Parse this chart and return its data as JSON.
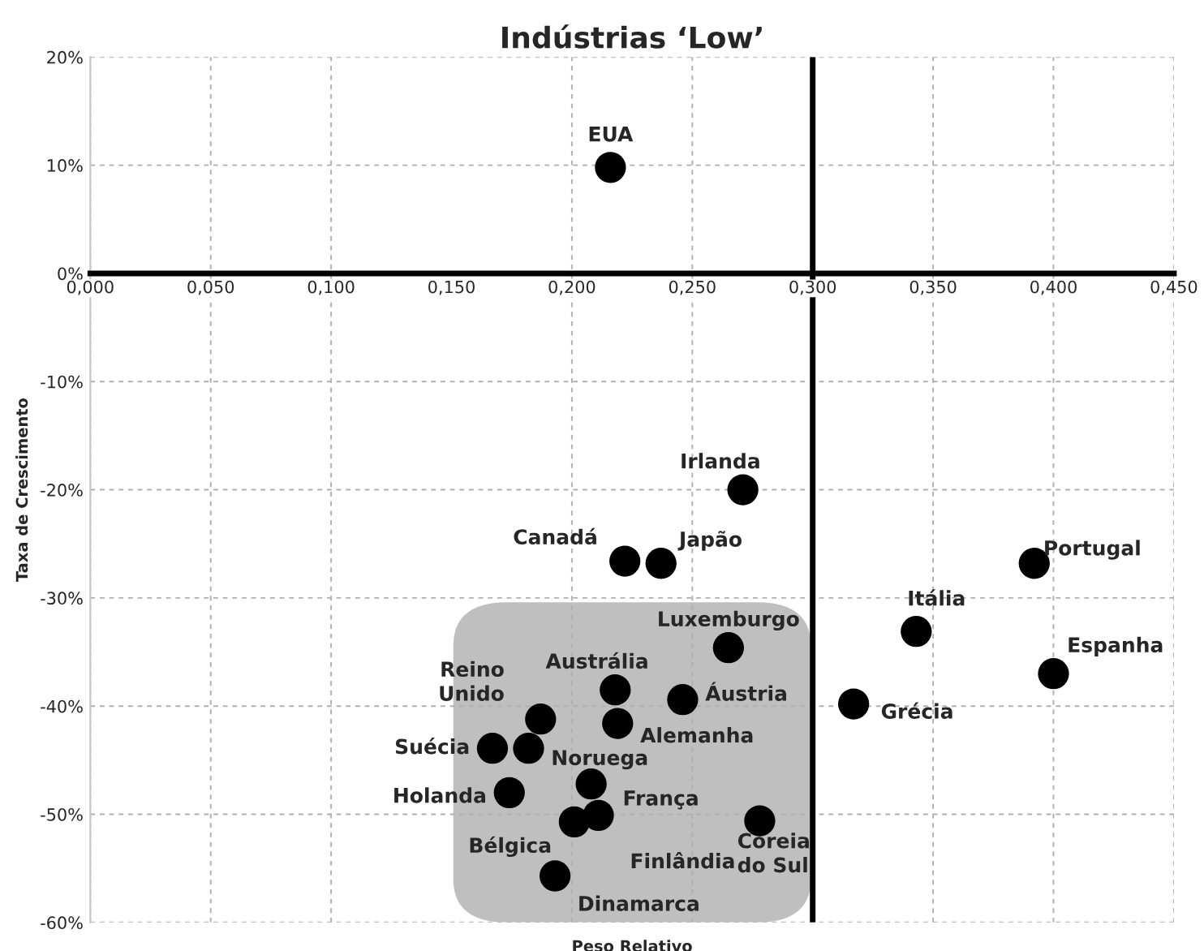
{
  "chart_data": {
    "type": "scatter",
    "title": "Indústrias ‘Low’",
    "xlabel": "Peso Relativo",
    "ylabel": "Taxa de Crescimento",
    "x": [
      0.216,
      0.271,
      0.222,
      0.237,
      0.265,
      0.218,
      0.246,
      0.187,
      0.219,
      0.167,
      0.182,
      0.174,
      0.208,
      0.211,
      0.201,
      0.193,
      0.278,
      0.317,
      0.343,
      0.392,
      0.4
    ],
    "series": [
      {
        "color": "#000000",
        "values": [
          9.8,
          -20.0,
          -26.6,
          -26.8,
          -34.6,
          -38.5,
          -39.4,
          -41.2,
          -41.6,
          -43.9,
          -43.9,
          -48.0,
          -47.2,
          -50.1,
          -50.7,
          -55.7,
          -50.6,
          -39.8,
          -33.1,
          -26.8,
          -37.0
        ]
      }
    ],
    "annotations": [
      {
        "text": "EUA",
        "x": 0.216,
        "y": 9.8
      },
      {
        "text": "Irlanda",
        "x": 0.271,
        "y": -20.0
      },
      {
        "text": "Canadá",
        "x": 0.222,
        "y": -26.6
      },
      {
        "text": "Japão",
        "x": 0.237,
        "y": -26.8
      },
      {
        "text": "Luxemburgo",
        "x": 0.265,
        "y": -34.6
      },
      {
        "text": "Austrália",
        "x": 0.218,
        "y": -38.5
      },
      {
        "text": "Áustria",
        "x": 0.246,
        "y": -39.4
      },
      {
        "text": "Reino\nUnido",
        "x": 0.187,
        "y": -41.2
      },
      {
        "text": "Alemanha",
        "x": 0.219,
        "y": -41.6
      },
      {
        "text": "Suécia",
        "x": 0.167,
        "y": -43.9
      },
      {
        "text": "Noruega",
        "x": 0.182,
        "y": -43.9
      },
      {
        "text": "Holanda",
        "x": 0.174,
        "y": -48.0
      },
      {
        "text": "França",
        "x": 0.208,
        "y": -47.2
      },
      {
        "text": "Finlândia",
        "x": 0.211,
        "y": -50.1
      },
      {
        "text": "Bélgica",
        "x": 0.201,
        "y": -50.7
      },
      {
        "text": "Dinamarca",
        "x": 0.193,
        "y": -55.7
      },
      {
        "text": "Coreia\ndo Sul",
        "x": 0.278,
        "y": -50.6
      },
      {
        "text": "Grécia",
        "x": 0.317,
        "y": -39.8
      },
      {
        "text": "Itália",
        "x": 0.343,
        "y": -33.1
      },
      {
        "text": "Portugal",
        "x": 0.392,
        "y": -26.8
      },
      {
        "text": "Espanha",
        "x": 0.4,
        "y": -37.0
      }
    ],
    "xlim": [
      0,
      0.45
    ],
    "xticks": [
      {
        "value": 0,
        "label": "0,000"
      },
      {
        "value": 0.05,
        "label": "0,050"
      },
      {
        "value": 0.1,
        "label": "0,100"
      },
      {
        "value": 0.15,
        "label": "0,150"
      },
      {
        "value": 0.2,
        "label": "0,200"
      },
      {
        "value": 0.25,
        "label": "0,250"
      },
      {
        "value": 0.3,
        "label": "0,300"
      },
      {
        "value": 0.35,
        "label": "0,350"
      },
      {
        "value": 0.4,
        "label": "0,400"
      },
      {
        "value": 0.45,
        "label": "0,450"
      }
    ],
    "ylim": [
      -60,
      20
    ],
    "yticks": [
      {
        "value": -60,
        "label": "-60%"
      },
      {
        "value": -50,
        "label": "-50%"
      },
      {
        "value": -40,
        "label": "-40%"
      },
      {
        "value": -30,
        "label": "-30%"
      },
      {
        "value": -20,
        "label": "-20%"
      },
      {
        "value": -10,
        "label": "-10%"
      },
      {
        "value": 0,
        "label": "0%"
      },
      {
        "value": 10,
        "label": "10%"
      },
      {
        "value": 20,
        "label": "20%"
      }
    ],
    "ref_lines": [
      {
        "axis": "x",
        "value": 0.3,
        "color": "#000000"
      }
    ],
    "grid": true,
    "marker": "circle"
  }
}
